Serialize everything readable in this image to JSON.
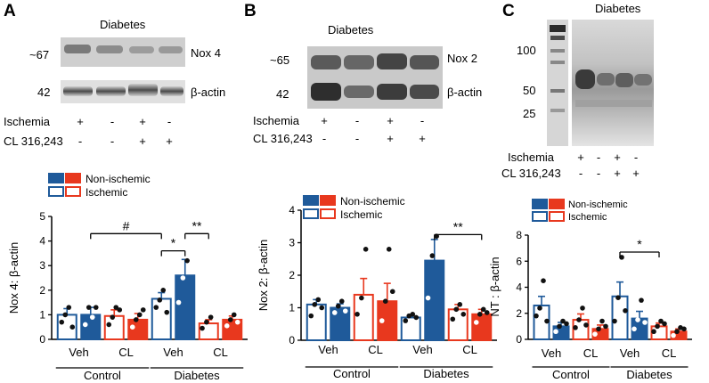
{
  "colors": {
    "blue": "#1f5a9a",
    "red": "#e8381e",
    "ink": "#111111"
  },
  "blots": {
    "A": {
      "label": "A",
      "header": "Diabetes",
      "target": "Nox 4",
      "target_mw": "~67",
      "actin": "β-actin",
      "actin_mw": "42"
    },
    "B": {
      "label": "B",
      "header": "Diabetes",
      "target": "Nox 2",
      "target_mw": "~65",
      "actin": "β-actin",
      "actin_mw": "42"
    },
    "C": {
      "label": "C",
      "header": "Diabetes",
      "mw1": "100",
      "mw2": "50",
      "mw3": "25"
    }
  },
  "treatment_rows": {
    "row1_label": "Ischemia",
    "row2_label": "CL 316,243",
    "row1_signs": [
      "+",
      "-",
      "+",
      "-"
    ],
    "row2_signs": [
      "-",
      "-",
      "+",
      "+"
    ]
  },
  "legend": {
    "label1": "Non-ischemic",
    "label2": "Ischemic"
  },
  "chart_data": [
    {
      "type": "bar",
      "panel": "A",
      "ylabel": "Nox 4: β-actin",
      "ylim": [
        0,
        5
      ],
      "yticks": [
        "0",
        "1",
        "2",
        "3",
        "4",
        "5"
      ],
      "xgroups": [
        {
          "label": "Veh"
        },
        {
          "label": "CL"
        },
        {
          "label": "Veh"
        },
        {
          "label": "CL"
        }
      ],
      "categories": [
        "Control",
        "Diabetes"
      ],
      "bars": [
        {
          "mean": 1.0,
          "sem": 0.25,
          "fill": "open",
          "color": "blue",
          "points": [
            0.7,
            1.0,
            1.3,
            0.5
          ]
        },
        {
          "mean": 1.0,
          "sem": 0.3,
          "fill": "solid",
          "color": "blue",
          "points": [
            0.6,
            1.3,
            0.9,
            1.3
          ]
        },
        {
          "mean": 0.95,
          "sem": 0.25,
          "fill": "open",
          "color": "red",
          "points": [
            0.6,
            0.9,
            1.3,
            1.2
          ]
        },
        {
          "mean": 0.8,
          "sem": 0.25,
          "fill": "solid",
          "color": "red",
          "points": [
            0.5,
            0.8,
            1.0,
            1.2
          ]
        },
        {
          "mean": 1.65,
          "sem": 0.25,
          "fill": "open",
          "color": "blue",
          "points": [
            1.3,
            1.6,
            2.0,
            1.1
          ]
        },
        {
          "mean": 2.6,
          "sem": 0.65,
          "fill": "solid",
          "color": "blue",
          "points": [
            1.5,
            2.5,
            3.2
          ]
        },
        {
          "mean": 0.65,
          "sem": 0.15,
          "fill": "open",
          "color": "red",
          "points": [
            0.45,
            0.7,
            0.9
          ]
        },
        {
          "mean": 0.8,
          "sem": 0.15,
          "fill": "solid",
          "color": "red",
          "points": [
            0.55,
            0.8,
            1.0,
            0.7
          ]
        }
      ],
      "sig": [
        {
          "from": 1,
          "to": 4,
          "y": 4.3,
          "text": "#"
        },
        {
          "from": 4,
          "to": 5,
          "y": 3.6,
          "text": "*"
        },
        {
          "from": 5,
          "to": 6,
          "y": 4.3,
          "text": "**"
        }
      ]
    },
    {
      "type": "bar",
      "panel": "B",
      "ylabel": "Nox 2: β-actin",
      "ylim": [
        0,
        4
      ],
      "yticks": [
        "0",
        "1",
        "2",
        "3",
        "4"
      ],
      "xgroups": [
        {
          "label": "Veh"
        },
        {
          "label": "CL"
        },
        {
          "label": "Veh"
        },
        {
          "label": "CL"
        }
      ],
      "categories": [
        "Control",
        "Diabetes"
      ],
      "bars": [
        {
          "mean": 1.1,
          "sem": 0.15,
          "fill": "open",
          "color": "blue",
          "points": [
            0.75,
            1.1,
            1.25,
            1.0
          ]
        },
        {
          "mean": 1.0,
          "sem": 0.12,
          "fill": "solid",
          "color": "blue",
          "points": [
            0.85,
            1.05,
            1.2,
            0.9
          ]
        },
        {
          "mean": 1.4,
          "sem": 0.5,
          "fill": "open",
          "color": "red",
          "points": [
            0.8,
            1.3,
            2.8
          ]
        },
        {
          "mean": 1.2,
          "sem": 0.55,
          "fill": "solid",
          "color": "red",
          "points": [
            0.6,
            1.2,
            2.8,
            1.5
          ]
        },
        {
          "mean": 0.7,
          "sem": 0.08,
          "fill": "open",
          "color": "blue",
          "points": [
            0.6,
            0.75,
            0.8,
            0.7
          ]
        },
        {
          "mean": 2.45,
          "sem": 0.65,
          "fill": "solid",
          "color": "blue",
          "points": [
            1.3,
            2.6,
            3.2
          ]
        },
        {
          "mean": 0.95,
          "sem": 0.15,
          "fill": "open",
          "color": "red",
          "points": [
            0.65,
            0.95,
            1.1,
            0.8
          ]
        },
        {
          "mean": 0.8,
          "sem": 0.15,
          "fill": "solid",
          "color": "red",
          "points": [
            0.55,
            0.8,
            0.95,
            0.85
          ]
        }
      ],
      "sig": [
        {
          "from": 5,
          "to": 7,
          "y": 3.25,
          "text": "**"
        }
      ]
    },
    {
      "type": "bar",
      "panel": "C",
      "ylabel": "NT : β-actin",
      "ylim": [
        0,
        8
      ],
      "yticks": [
        "0",
        "2",
        "4",
        "6",
        "8"
      ],
      "xgroups": [
        {
          "label": "Veh"
        },
        {
          "label": "CL"
        },
        {
          "label": "Veh"
        },
        {
          "label": "CL"
        }
      ],
      "categories": [
        "Control",
        "Diabetes"
      ],
      "bars": [
        {
          "mean": 2.6,
          "sem": 0.7,
          "fill": "open",
          "color": "blue",
          "points": [
            1.8,
            2.4,
            4.5,
            1.4
          ]
        },
        {
          "mean": 1.0,
          "sem": 0.3,
          "fill": "solid",
          "color": "blue",
          "points": [
            0.6,
            1.0,
            1.4,
            1.2
          ]
        },
        {
          "mean": 1.5,
          "sem": 0.45,
          "fill": "open",
          "color": "red",
          "points": [
            0.9,
            1.5,
            2.4,
            1.1
          ]
        },
        {
          "mean": 0.8,
          "sem": 0.3,
          "fill": "solid",
          "color": "red",
          "points": [
            0.4,
            0.8,
            1.4,
            1.0
          ]
        },
        {
          "mean": 3.3,
          "sem": 1.1,
          "fill": "open",
          "color": "blue",
          "points": [
            1.4,
            3.2,
            6.3,
            2.2
          ]
        },
        {
          "mean": 1.6,
          "sem": 0.55,
          "fill": "solid",
          "color": "blue",
          "points": [
            0.8,
            1.5,
            3.0,
            1.3
          ]
        },
        {
          "mean": 1.0,
          "sem": 0.25,
          "fill": "open",
          "color": "red",
          "points": [
            0.6,
            1.0,
            1.4,
            1.2
          ]
        },
        {
          "mean": 0.6,
          "sem": 0.2,
          "fill": "solid",
          "color": "red",
          "points": [
            0.3,
            0.6,
            0.9,
            0.8
          ]
        }
      ],
      "sig": [
        {
          "from": 4,
          "to": 6,
          "y": 6.7,
          "text": "*"
        }
      ]
    }
  ]
}
